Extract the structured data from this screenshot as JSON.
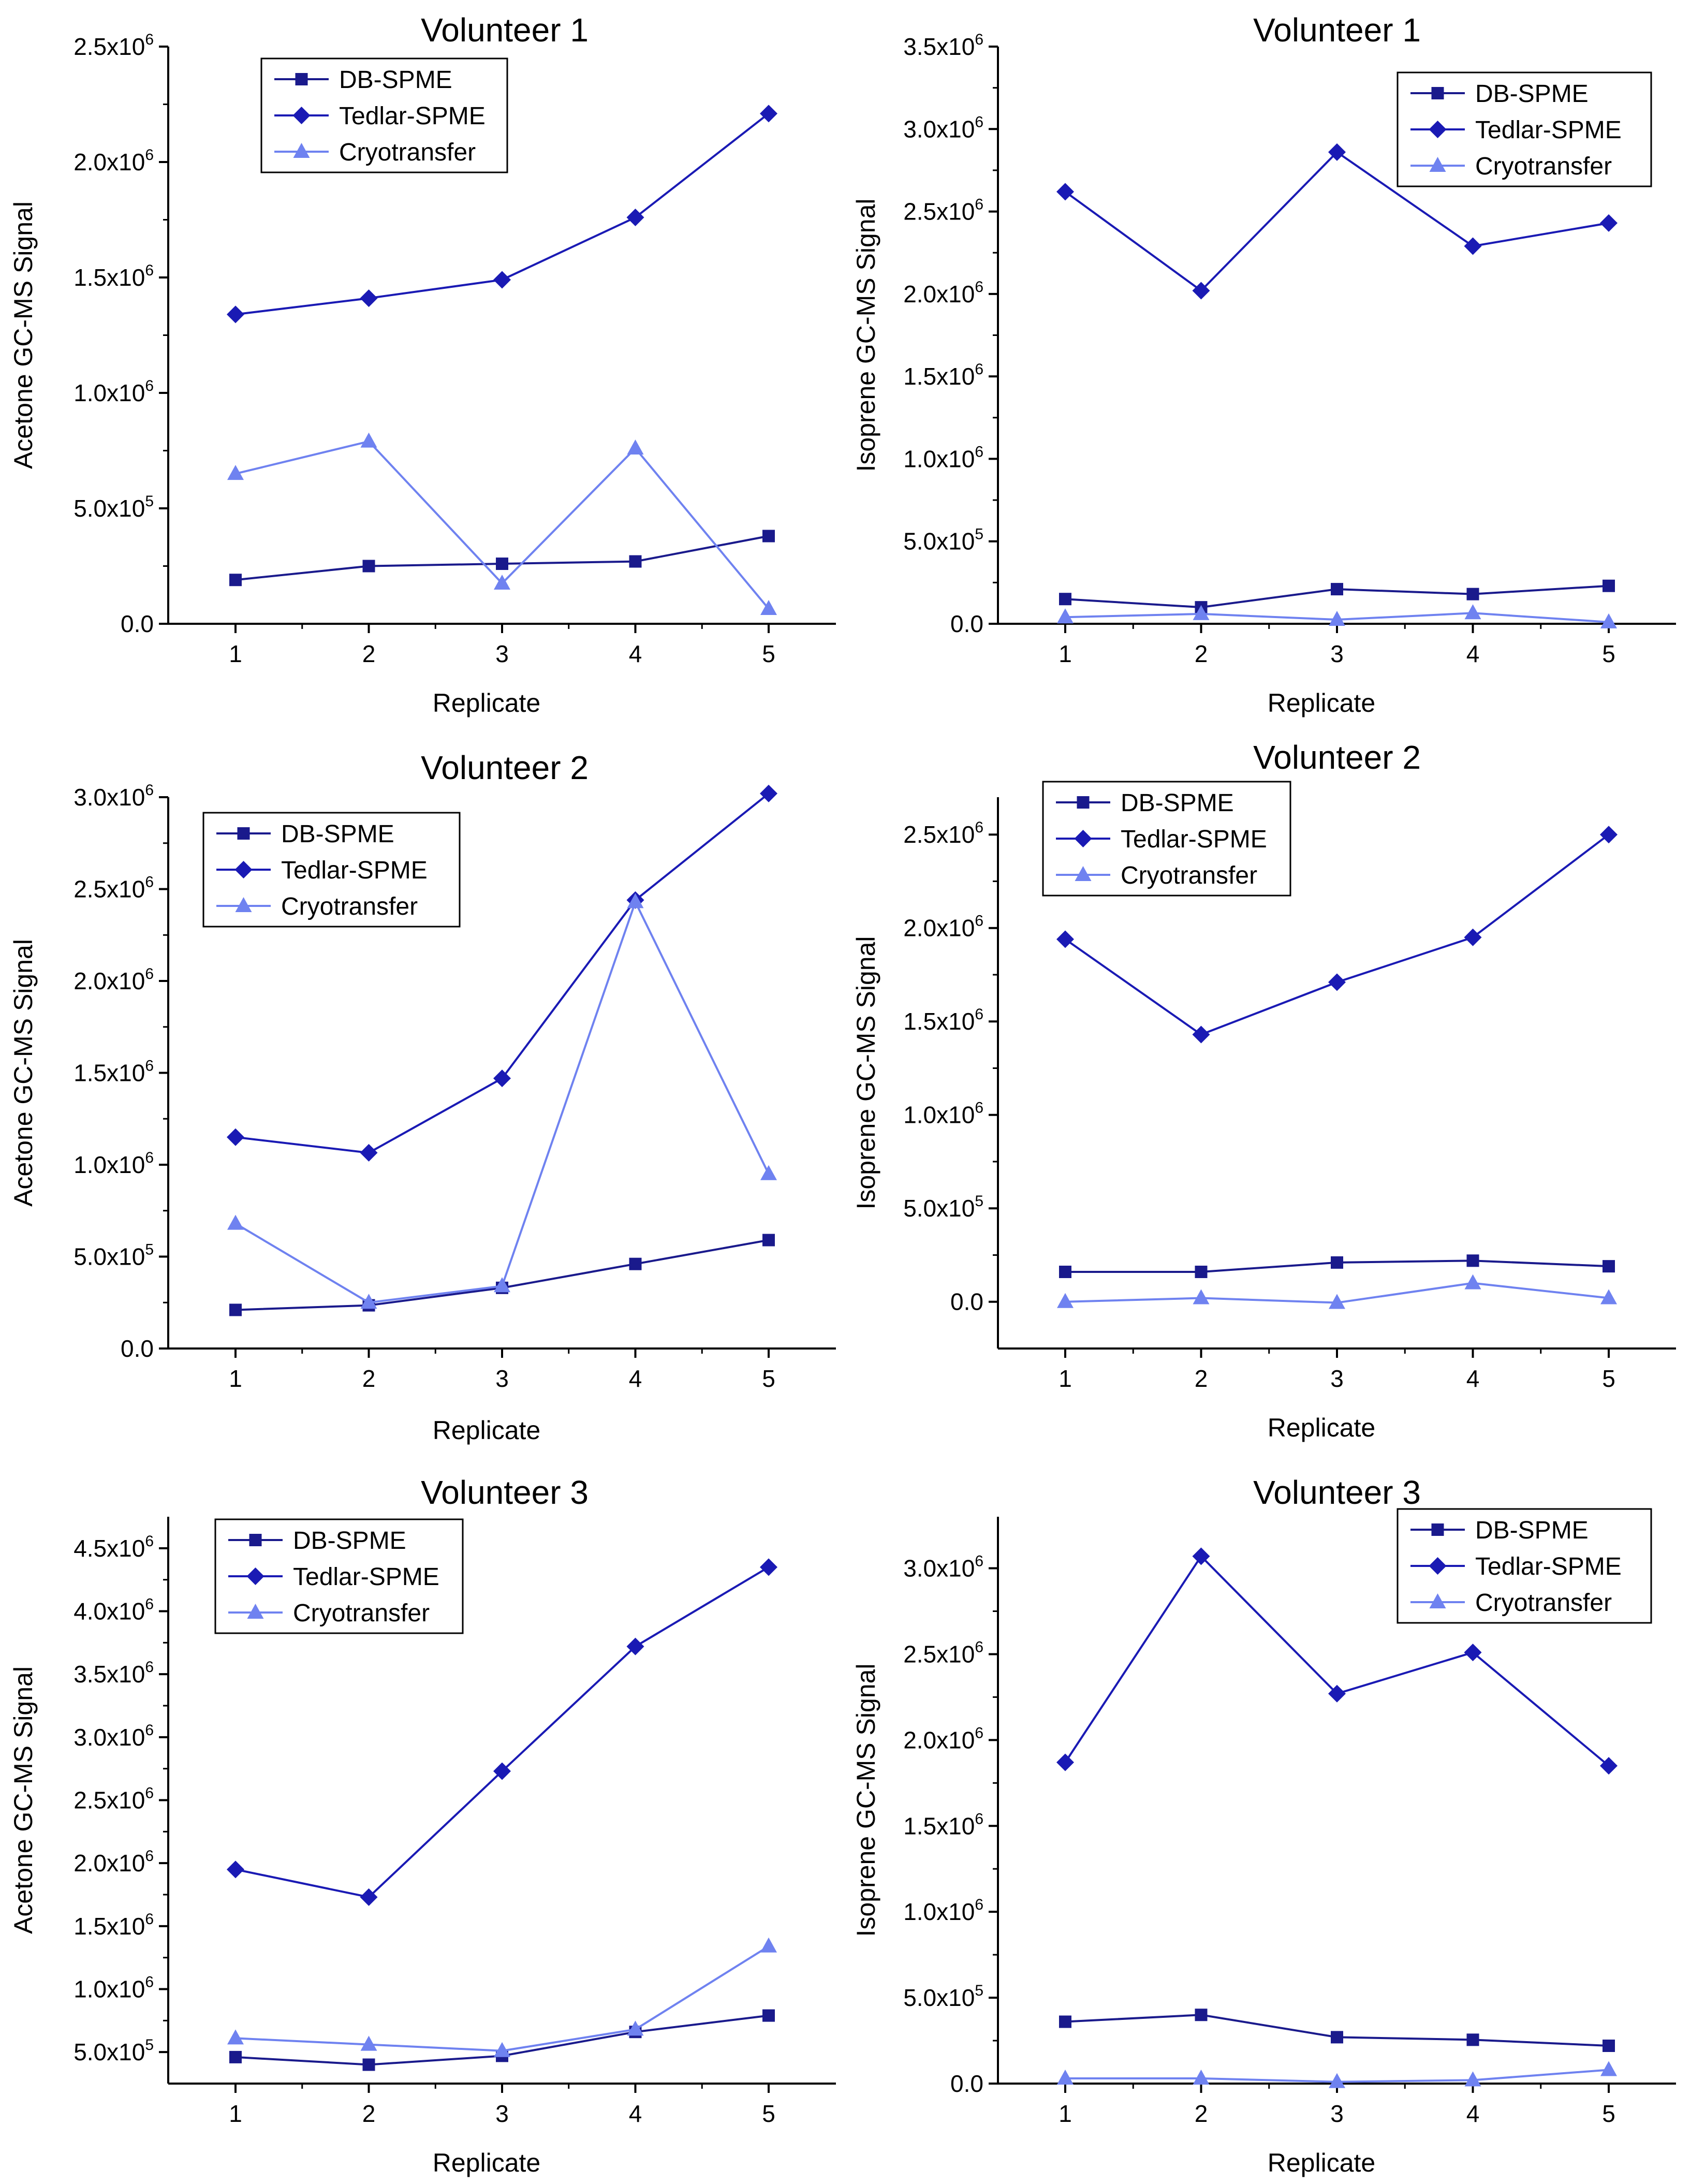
{
  "colors": {
    "db_spme": "#1a1a8c",
    "tedlar_spme": "#1a1ab4",
    "cryotransfer": "#6f82f0",
    "axis": "#000000"
  },
  "legend_entries": [
    "DB-SPME",
    "Tedlar-SPME",
    "Cryotransfer"
  ],
  "chart_data": [
    {
      "type": "line",
      "title": "Volunteer 1",
      "xlabel": "Replicate",
      "ylabel": "Acetone GC-MS Signal",
      "x": [
        1,
        2,
        3,
        4,
        5
      ],
      "ylim": [
        0,
        2500000
      ],
      "yticks": [
        0,
        500000,
        1000000,
        1500000,
        2000000,
        2500000
      ],
      "ytick_labels": [
        [
          "0.0",
          ""
        ],
        [
          "5.0x10",
          "5"
        ],
        [
          "1.0x10",
          "6"
        ],
        [
          "1.5x10",
          "6"
        ],
        [
          "2.0x10",
          "6"
        ],
        [
          "2.5x10",
          "6"
        ]
      ],
      "legend_position": "top-left",
      "series": [
        {
          "name": "DB-SPME",
          "marker": "square",
          "values": [
            190000,
            250000,
            260000,
            270000,
            380000
          ]
        },
        {
          "name": "Tedlar-SPME",
          "marker": "diamond",
          "values": [
            1340000,
            1410000,
            1490000,
            1760000,
            2210000
          ]
        },
        {
          "name": "Cryotransfer",
          "marker": "triangle",
          "values": [
            650000,
            790000,
            175000,
            760000,
            65000
          ]
        }
      ]
    },
    {
      "type": "line",
      "title": "Volunteer 1",
      "xlabel": "Replicate",
      "ylabel": "Isoprene GC-MS Signal",
      "x": [
        1,
        2,
        3,
        4,
        5
      ],
      "ylim": [
        0,
        3500000
      ],
      "yticks": [
        0,
        500000,
        1000000,
        1500000,
        2000000,
        2500000,
        3000000,
        3500000
      ],
      "ytick_labels": [
        [
          "0.0",
          ""
        ],
        [
          "5.0x10",
          "5"
        ],
        [
          "1.0x10",
          "6"
        ],
        [
          "1.5x10",
          "6"
        ],
        [
          "2.0x10",
          "6"
        ],
        [
          "2.5x10",
          "6"
        ],
        [
          "3.0x10",
          "6"
        ],
        [
          "3.5x10",
          "6"
        ]
      ],
      "legend_position": "top-right",
      "series": [
        {
          "name": "DB-SPME",
          "marker": "square",
          "values": [
            150000,
            100000,
            210000,
            180000,
            230000
          ]
        },
        {
          "name": "Tedlar-SPME",
          "marker": "diamond",
          "values": [
            2620000,
            2020000,
            2860000,
            2290000,
            2430000
          ]
        },
        {
          "name": "Cryotransfer",
          "marker": "triangle",
          "values": [
            40000,
            60000,
            25000,
            65000,
            10000
          ]
        }
      ]
    },
    {
      "type": "line",
      "title": "Volunteer 2",
      "xlabel": "Replicate",
      "ylabel": "Acetone GC-MS Signal",
      "x": [
        1,
        2,
        3,
        4,
        5
      ],
      "ylim": [
        0,
        3000000
      ],
      "yticks": [
        0,
        500000,
        1000000,
        1500000,
        2000000,
        2500000,
        3000000
      ],
      "ytick_labels": [
        [
          "0.0",
          ""
        ],
        [
          "5.0x10",
          "5"
        ],
        [
          "1.0x10",
          "6"
        ],
        [
          "1.5x10",
          "6"
        ],
        [
          "2.0x10",
          "6"
        ],
        [
          "2.5x10",
          "6"
        ],
        [
          "3.0x10",
          "6"
        ]
      ],
      "legend_position": "top-left",
      "series": [
        {
          "name": "DB-SPME",
          "marker": "square",
          "values": [
            210000,
            235000,
            330000,
            460000,
            590000
          ]
        },
        {
          "name": "Tedlar-SPME",
          "marker": "diamond",
          "values": [
            1150000,
            1065000,
            1470000,
            2440000,
            3020000
          ]
        },
        {
          "name": "Cryotransfer",
          "marker": "triangle",
          "values": [
            680000,
            250000,
            340000,
            2430000,
            950000
          ]
        }
      ]
    },
    {
      "type": "line",
      "title": "Volunteer 2",
      "xlabel": "Replicate",
      "ylabel": "Isoprene GC-MS Signal",
      "x": [
        1,
        2,
        3,
        4,
        5
      ],
      "ylim": [
        -250000,
        2700000
      ],
      "yticks": [
        0,
        500000,
        1000000,
        1500000,
        2000000,
        2500000
      ],
      "ytick_labels": [
        [
          "0.0",
          ""
        ],
        [
          "5.0x10",
          "5"
        ],
        [
          "1.0x10",
          "6"
        ],
        [
          "1.5x10",
          "6"
        ],
        [
          "2.0x10",
          "6"
        ],
        [
          "2.5x10",
          "6"
        ]
      ],
      "legend_position": "top-left",
      "series": [
        {
          "name": "DB-SPME",
          "marker": "square",
          "values": [
            160000,
            160000,
            210000,
            220000,
            190000
          ]
        },
        {
          "name": "Tedlar-SPME",
          "marker": "diamond",
          "values": [
            1940000,
            1430000,
            1710000,
            1950000,
            2500000
          ]
        },
        {
          "name": "Cryotransfer",
          "marker": "triangle",
          "values": [
            0,
            20000,
            -5000,
            100000,
            20000
          ]
        }
      ]
    },
    {
      "type": "line",
      "title": "Volunteer 3",
      "xlabel": "Replicate",
      "ylabel": "Acetone GC-MS Signal",
      "x": [
        1,
        2,
        3,
        4,
        5
      ],
      "ylim": [
        250000,
        4750000
      ],
      "yticks": [
        500000,
        1000000,
        1500000,
        2000000,
        2500000,
        3000000,
        3500000,
        4000000,
        4500000
      ],
      "ytick_labels": [
        [
          "5.0x10",
          "5"
        ],
        [
          "1.0x10",
          "6"
        ],
        [
          "1.5x10",
          "6"
        ],
        [
          "2.0x10",
          "6"
        ],
        [
          "2.5x10",
          "6"
        ],
        [
          "3.0x10",
          "6"
        ],
        [
          "3.5x10",
          "6"
        ],
        [
          "4.0x10",
          "6"
        ],
        [
          "4.5x10",
          "6"
        ]
      ],
      "legend_position": "top-left",
      "series": [
        {
          "name": "DB-SPME",
          "marker": "square",
          "values": [
            460000,
            400000,
            470000,
            660000,
            790000
          ]
        },
        {
          "name": "Tedlar-SPME",
          "marker": "diamond",
          "values": [
            1950000,
            1730000,
            2730000,
            3720000,
            4350000
          ]
        },
        {
          "name": "Cryotransfer",
          "marker": "triangle",
          "values": [
            610000,
            560000,
            510000,
            680000,
            1340000
          ]
        }
      ]
    },
    {
      "type": "line",
      "title": "Volunteer 3",
      "xlabel": "Replicate",
      "ylabel": "Isoprene GC-MS Signal",
      "x": [
        1,
        2,
        3,
        4,
        5
      ],
      "ylim": [
        0,
        3300000
      ],
      "yticks": [
        0,
        500000,
        1000000,
        1500000,
        2000000,
        2500000,
        3000000
      ],
      "ytick_labels": [
        [
          "0.0",
          ""
        ],
        [
          "5.0x10",
          "5"
        ],
        [
          "1.0x10",
          "6"
        ],
        [
          "1.5x10",
          "6"
        ],
        [
          "2.0x10",
          "6"
        ],
        [
          "2.5x10",
          "6"
        ],
        [
          "3.0x10",
          "6"
        ]
      ],
      "legend_position": "top-right",
      "series": [
        {
          "name": "DB-SPME",
          "marker": "square",
          "values": [
            360000,
            400000,
            270000,
            255000,
            220000
          ]
        },
        {
          "name": "Tedlar-SPME",
          "marker": "diamond",
          "values": [
            1870000,
            3070000,
            2270000,
            2510000,
            1850000
          ]
        },
        {
          "name": "Cryotransfer",
          "marker": "triangle",
          "values": [
            30000,
            30000,
            10000,
            20000,
            80000
          ]
        }
      ]
    }
  ]
}
